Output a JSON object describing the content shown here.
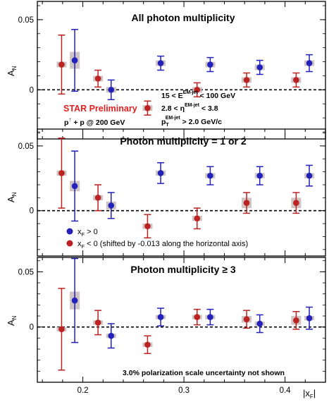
{
  "chart_data": [
    {
      "type": "scatter",
      "title": "All photon multiplicity",
      "ylabel_main": "A",
      "ylabel_sub": "N",
      "ylim": [
        -0.035,
        0.063
      ],
      "yticks": [
        {
          "v": 0.05,
          "label": "0.05"
        },
        {
          "v": 0,
          "label": "0"
        }
      ],
      "annotations": {
        "preliminary": "STAR Preliminary",
        "collision_a": "p",
        "collision_sup": "↑",
        "collision_b": " + p @ 200 GeV",
        "cut1_a": "15 < E",
        "cut1_sup": "EM-jet",
        "cut1_b": " <  100 GeV",
        "cut2_a": "2.8 < η",
        "cut2_sup": "EM-jet",
        "cut2_b": " < 3.8",
        "cut3_a": "p",
        "cut3_sub": "T",
        "cut3_sup": "EM-jet",
        "cut3_b": " > 2.0 GeV/c"
      },
      "series": [
        {
          "color": "#2222bb",
          "points": [
            {
              "x": 0.192,
              "y": 0.021,
              "err": 0.022,
              "sys": 0.006
            },
            {
              "x": 0.228,
              "y": 0.0,
              "err": 0.007,
              "sys": 0.002
            },
            {
              "x": 0.277,
              "y": 0.019,
              "err": 0.005,
              "sys": 0.002
            },
            {
              "x": 0.326,
              "y": 0.018,
              "err": 0.005,
              "sys": 0.002
            },
            {
              "x": 0.375,
              "y": 0.016,
              "err": 0.005,
              "sys": 0.002
            },
            {
              "x": 0.424,
              "y": 0.019,
              "err": 0.006,
              "sys": 0.002
            }
          ]
        },
        {
          "color": "#bb2222",
          "points": [
            {
              "x": 0.179,
              "y": 0.018,
              "err": 0.021,
              "sys": 0.002
            },
            {
              "x": 0.215,
              "y": 0.008,
              "err": 0.006,
              "sys": 0.002
            },
            {
              "x": 0.264,
              "y": -0.013,
              "err": 0.005,
              "sys": 0.002
            },
            {
              "x": 0.313,
              "y": 0.0,
              "err": 0.005,
              "sys": 0.002
            },
            {
              "x": 0.362,
              "y": 0.007,
              "err": 0.005,
              "sys": 0.002
            },
            {
              "x": 0.411,
              "y": 0.007,
              "err": 0.005,
              "sys": 0.002
            }
          ]
        }
      ]
    },
    {
      "type": "scatter",
      "title": "Photon multiplicity = 1 or 2",
      "ylabel_main": "A",
      "ylabel_sub": "N",
      "ylim": [
        -0.035,
        0.063
      ],
      "yticks": [
        {
          "v": 0.05,
          "label": "0.05"
        },
        {
          "v": 0,
          "label": "0"
        }
      ],
      "legend": {
        "pos_main": "x",
        "pos_sub": "F",
        "pos_rest": " > 0",
        "neg_main": "x",
        "neg_sub": "F",
        "neg_rest": " < 0 (shifted by -0.013 along the horizontal axis)"
      },
      "series": [
        {
          "color": "#2222bb",
          "points": [
            {
              "x": 0.192,
              "y": 0.019,
              "err": 0.027,
              "sys": 0.004
            },
            {
              "x": 0.228,
              "y": 0.004,
              "err": 0.01,
              "sys": 0.003
            },
            {
              "x": 0.277,
              "y": 0.029,
              "err": 0.008,
              "sys": 0.002
            },
            {
              "x": 0.326,
              "y": 0.027,
              "err": 0.007,
              "sys": 0.002
            },
            {
              "x": 0.375,
              "y": 0.027,
              "err": 0.007,
              "sys": 0.002
            },
            {
              "x": 0.424,
              "y": 0.027,
              "err": 0.008,
              "sys": 0.002
            }
          ]
        },
        {
          "color": "#bb2222",
          "points": [
            {
              "x": 0.179,
              "y": 0.029,
              "err": 0.027,
              "sys": 0.002
            },
            {
              "x": 0.215,
              "y": 0.01,
              "err": 0.01,
              "sys": 0.002
            },
            {
              "x": 0.264,
              "y": -0.012,
              "err": 0.009,
              "sys": 0.002
            },
            {
              "x": 0.313,
              "y": -0.006,
              "err": 0.008,
              "sys": 0.002
            },
            {
              "x": 0.362,
              "y": 0.006,
              "err": 0.008,
              "sys": 0.004
            },
            {
              "x": 0.411,
              "y": 0.006,
              "err": 0.008,
              "sys": 0.004
            }
          ]
        }
      ]
    },
    {
      "type": "scatter",
      "title": "Photon multiplicity ≥ 3",
      "ylabel_main": "A",
      "ylabel_sub": "N",
      "xlabel_main": "|x",
      "xlabel_sub": "F",
      "xlabel_end": "|",
      "ylim": [
        -0.05,
        0.063
      ],
      "xlim": [
        0.155,
        0.44
      ],
      "yticks": [
        {
          "v": 0.05,
          "label": "0.05"
        },
        {
          "v": 0,
          "label": "0"
        }
      ],
      "xticks": [
        {
          "v": 0.2,
          "label": "0.2"
        },
        {
          "v": 0.3,
          "label": "0.3"
        },
        {
          "v": 0.4,
          "label": "0.4"
        }
      ],
      "annotations": {
        "note": "3.0% polarization scale uncertainty not shown"
      },
      "series": [
        {
          "color": "#2222bb",
          "points": [
            {
              "x": 0.192,
              "y": 0.024,
              "err": 0.038,
              "sys": 0.008
            },
            {
              "x": 0.228,
              "y": -0.008,
              "err": 0.011,
              "sys": 0.002
            },
            {
              "x": 0.277,
              "y": 0.009,
              "err": 0.008,
              "sys": 0.002
            },
            {
              "x": 0.326,
              "y": 0.009,
              "err": 0.007,
              "sys": 0.002
            },
            {
              "x": 0.375,
              "y": 0.003,
              "err": 0.008,
              "sys": 0.002
            },
            {
              "x": 0.424,
              "y": 0.008,
              "err": 0.01,
              "sys": 0.002
            }
          ]
        },
        {
          "color": "#bb2222",
          "points": [
            {
              "x": 0.179,
              "y": -0.002,
              "err": 0.037,
              "sys": 0.002
            },
            {
              "x": 0.215,
              "y": 0.004,
              "err": 0.011,
              "sys": 0.002
            },
            {
              "x": 0.264,
              "y": -0.016,
              "err": 0.008,
              "sys": 0.002
            },
            {
              "x": 0.313,
              "y": 0.009,
              "err": 0.007,
              "sys": 0.002
            },
            {
              "x": 0.362,
              "y": 0.007,
              "err": 0.008,
              "sys": 0.003
            },
            {
              "x": 0.411,
              "y": 0.006,
              "err": 0.008,
              "sys": 0.004
            }
          ]
        }
      ]
    }
  ]
}
